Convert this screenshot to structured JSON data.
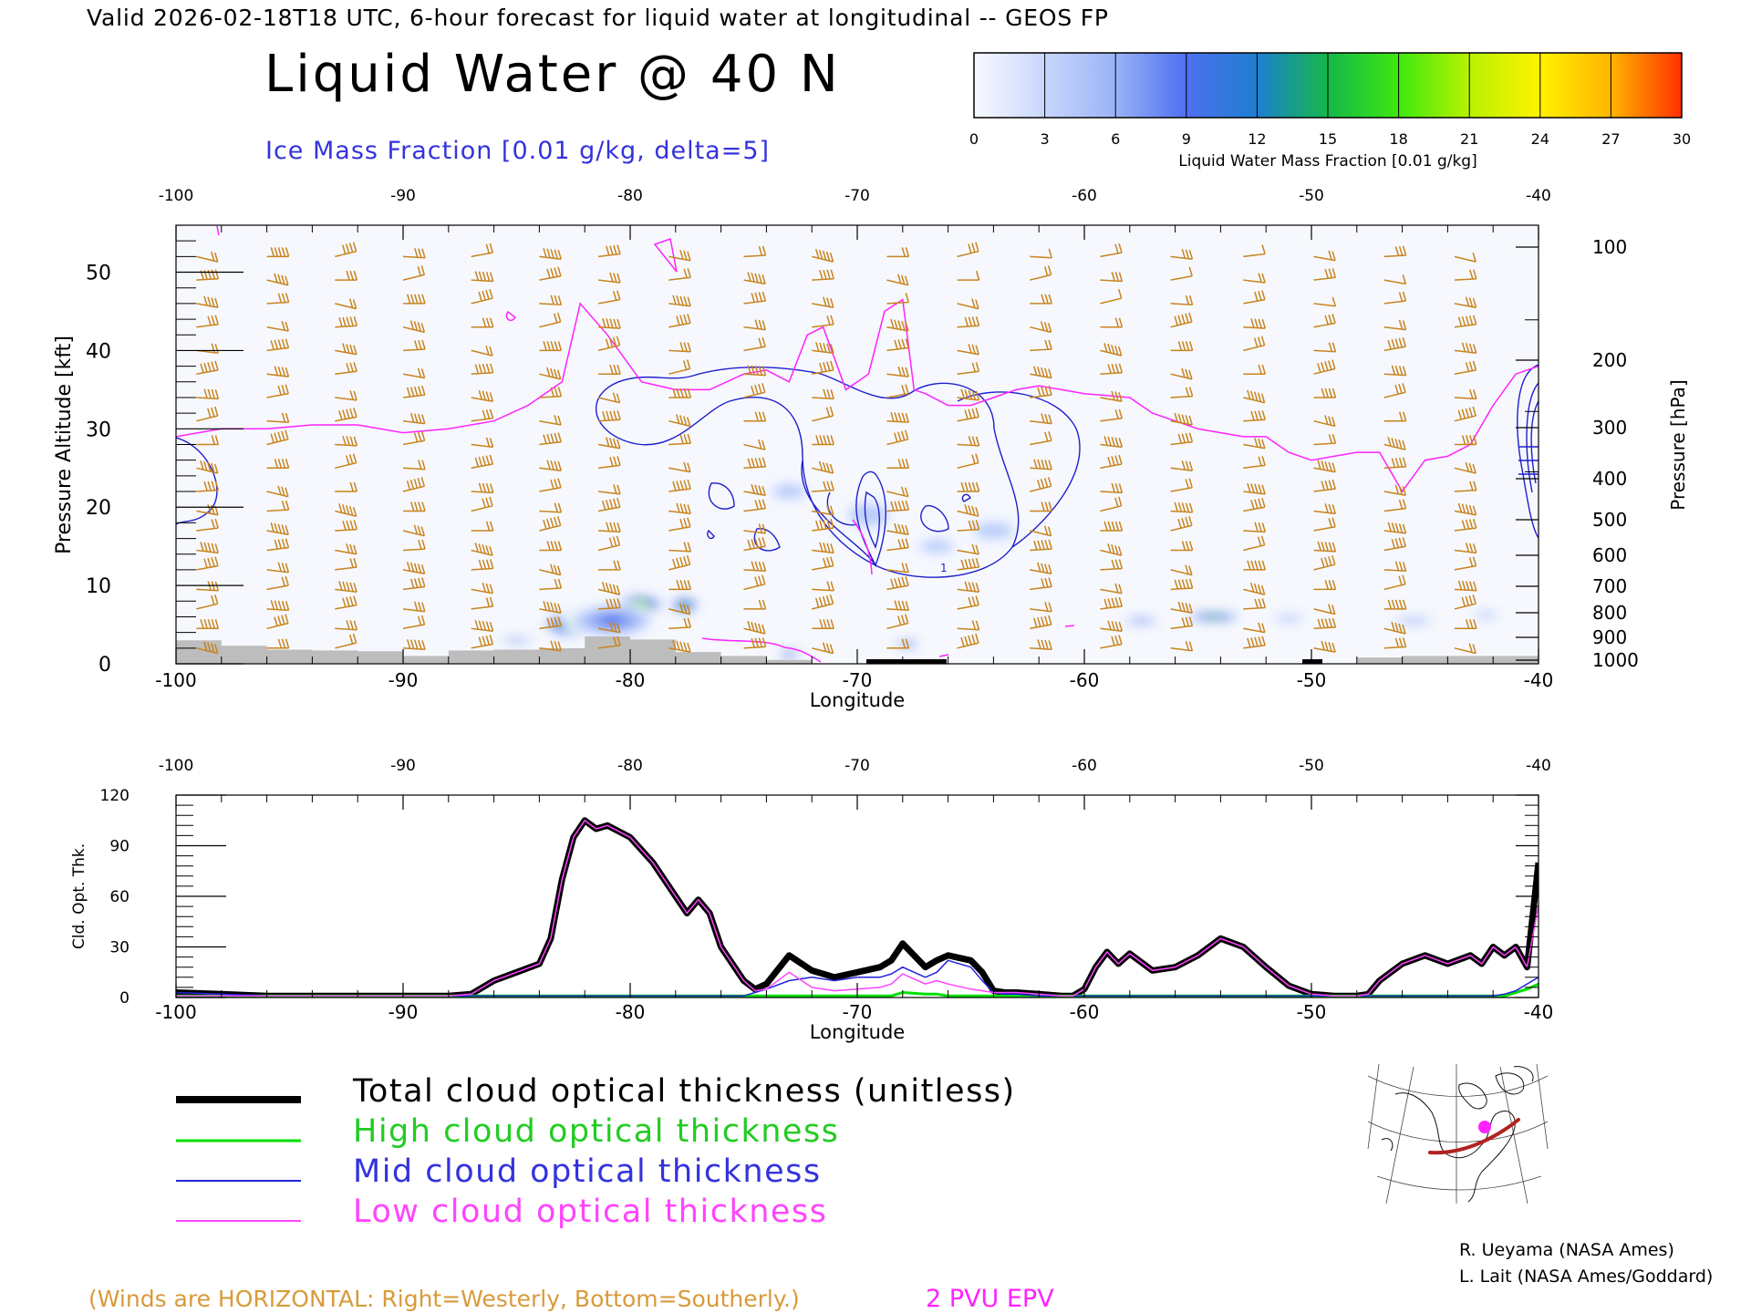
{
  "header": {
    "valid_line": "Valid 2026-02-18T18 UTC, 6-hour forecast for liquid water at longitudinal -- GEOS FP",
    "main_title": "Liquid Water @ 40 N",
    "ice_label": "Ice Mass Fraction [0.01 g/kg, delta=5]"
  },
  "colorbar": {
    "ticks": [
      "0",
      "3",
      "6",
      "9",
      "12",
      "15",
      "18",
      "21",
      "24",
      "27",
      "30"
    ],
    "label": "Liquid Water Mass Fraction [0.01 g/kg]",
    "colors": [
      "#f4f7ff",
      "#b9cdfb",
      "#8eaaf5",
      "#4f6ff0",
      "#1d7fd0",
      "#14b84a",
      "#3ee810",
      "#b8f200",
      "#fff200",
      "#ffb400",
      "#ff5000"
    ]
  },
  "colors": {
    "winds": "#c8841e",
    "epv": "#ff22ff",
    "ice_contour": "#1f1fcc",
    "terrain": "#bdbdbd",
    "total": "#000000",
    "high": "#00e000",
    "mid": "#2222dd",
    "low": "#ff44ff"
  },
  "top_chart": {
    "x_ticks": [
      "-100",
      "-90",
      "-80",
      "-70",
      "-60",
      "-50",
      "-40"
    ],
    "x_label": "Longitude",
    "y_ticks": [
      "0",
      "10",
      "20",
      "30",
      "40",
      "50"
    ],
    "y_label": "Pressure Altitude [kft]",
    "p_ticks": [
      "100",
      "200",
      "300",
      "400",
      "500",
      "600",
      "700",
      "800",
      "900",
      "1000"
    ],
    "p_label": "Pressure [hPa]",
    "contour_label": "1"
  },
  "bottom_chart": {
    "x_ticks": [
      "-100",
      "-90",
      "-80",
      "-70",
      "-60",
      "-50",
      "-40"
    ],
    "x_label": "Longitude",
    "y_ticks": [
      "0",
      "30",
      "60",
      "90",
      "120"
    ],
    "y_label": "Cld. Opt. Thk."
  },
  "legend": {
    "total": "Total cloud optical thickness (unitless)",
    "high": "High cloud optical thickness",
    "mid": "Mid cloud optical thickness",
    "low": "Low cloud optical thickness"
  },
  "credits": {
    "line1": "R. Ueyama (NASA Ames)",
    "line2": "L. Lait (NASA Ames/Goddard)"
  },
  "footer": {
    "winds_note": "(Winds are HORIZONTAL: Right=Westerly, Bottom=Southerly.)",
    "epv_label": "2 PVU EPV"
  },
  "chart_data": [
    {
      "type": "heatmap",
      "title": "Liquid Water @ 40 N",
      "xlabel": "Longitude",
      "ylabel": "Pressure Altitude [kft]",
      "xlim": [
        -100,
        -40
      ],
      "ylim": [
        0,
        56
      ],
      "colorbar_range": [
        0,
        30
      ],
      "liquid_blobs": [
        {
          "lon": -82.3,
          "alt": 5,
          "w": 3.2,
          "h": 3.5,
          "v": 26
        },
        {
          "lon": -79.6,
          "alt": 7.5,
          "w": 2.2,
          "h": 2.8,
          "v": 24
        },
        {
          "lon": -77.6,
          "alt": 7.5,
          "w": 1.4,
          "h": 2.2,
          "v": 20
        },
        {
          "lon": -80.8,
          "alt": 5.5,
          "w": 4.5,
          "h": 5,
          "v": 10
        },
        {
          "lon": -85,
          "alt": 3,
          "w": 2,
          "h": 1.2,
          "v": 8
        },
        {
          "lon": -73,
          "alt": 1.2,
          "w": 1.2,
          "h": 1.2,
          "v": 12
        },
        {
          "lon": -67.8,
          "alt": 2.5,
          "w": 1.2,
          "h": 1,
          "v": 16
        },
        {
          "lon": -69.5,
          "alt": 19,
          "w": 3.5,
          "h": 6,
          "v": 4
        },
        {
          "lon": -64,
          "alt": 17,
          "w": 3.5,
          "h": 4.5,
          "v": 4
        },
        {
          "lon": -66.5,
          "alt": 15,
          "w": 3,
          "h": 3.5,
          "v": 3
        },
        {
          "lon": -73,
          "alt": 22,
          "w": 3,
          "h": 4,
          "v": 3
        },
        {
          "lon": -57.5,
          "alt": 5.5,
          "w": 2,
          "h": 1.1,
          "v": 10
        },
        {
          "lon": -54.3,
          "alt": 6,
          "w": 2.6,
          "h": 1.3,
          "v": 19
        },
        {
          "lon": -51,
          "alt": 5.8,
          "w": 2,
          "h": 1.1,
          "v": 8
        },
        {
          "lon": -45.5,
          "alt": 5.5,
          "w": 2.5,
          "h": 1.2,
          "v": 8
        },
        {
          "lon": -42.3,
          "alt": 6.2,
          "w": 1.5,
          "h": 1.1,
          "v": 7
        }
      ],
      "tropopause_2pvu": {
        "lon": [
          -100,
          -98,
          -96,
          -94,
          -92,
          -90,
          -88,
          -86,
          -84.5,
          -83,
          -82.2,
          -81,
          -79.5,
          -78,
          -76.5,
          -75,
          -74,
          -73,
          -72.2,
          -71.5,
          -70.5,
          -69.5,
          -68.8,
          -68,
          -67.5,
          -67,
          -66,
          -65,
          -64,
          -63,
          -62,
          -61,
          -60,
          -58,
          -57,
          -55,
          -53,
          -52,
          -51,
          -50,
          -49,
          -48,
          -47,
          -46,
          -45.5,
          -45,
          -44,
          -43,
          -42,
          -41,
          -40
        ],
        "alt": [
          29,
          30,
          30,
          30.5,
          30.5,
          29.5,
          30,
          31,
          33,
          36,
          46,
          42,
          36,
          35,
          35,
          37,
          37.5,
          36,
          42,
          43,
          35,
          37,
          45,
          46.5,
          35,
          34.5,
          33,
          33,
          34,
          35,
          35.5,
          35,
          34.5,
          34,
          32,
          30,
          29,
          29,
          27,
          26,
          26.5,
          27,
          27,
          22,
          24,
          26,
          26.5,
          28,
          33,
          37,
          38
        ]
      },
      "ice_contour_level": 1,
      "terrain": {
        "lon": [
          -100,
          -98,
          -96,
          -94,
          -92,
          -90,
          -88,
          -86,
          -84,
          -82,
          -80,
          -78,
          -76,
          -74,
          -72,
          -70,
          -68,
          -66,
          -64,
          -62,
          -60,
          -58,
          -56,
          -54,
          -52,
          -50,
          -48,
          -46,
          -44,
          -42,
          -40
        ],
        "height": [
          3,
          2.3,
          1.8,
          1.7,
          1.6,
          1,
          1.7,
          1.8,
          2,
          3.5,
          3.1,
          1.5,
          1,
          0.5,
          0,
          0,
          0,
          0,
          0,
          0,
          0,
          0,
          0,
          0,
          0,
          0,
          0.8,
          1,
          1,
          1,
          1
        ]
      }
    },
    {
      "type": "line",
      "ylabel": "Cld. Opt. Thk.",
      "xlabel": "Longitude",
      "xlim": [
        -100,
        -40
      ],
      "ylim": [
        0,
        120
      ],
      "x": [
        -100,
        -98,
        -96,
        -94,
        -92,
        -90,
        -88,
        -87,
        -86,
        -85,
        -84,
        -83.5,
        -83,
        -82.5,
        -82,
        -81.5,
        -81,
        -80,
        -79,
        -78,
        -77.5,
        -77,
        -76.5,
        -76,
        -75,
        -74.5,
        -74,
        -73,
        -72,
        -71,
        -70,
        -69,
        -68.5,
        -68,
        -67,
        -66.5,
        -66,
        -65,
        -64.5,
        -64,
        -63.5,
        -63,
        -62,
        -61,
        -60.5,
        -60,
        -59.5,
        -59,
        -58.5,
        -58,
        -57,
        -56,
        -55,
        -54,
        -53,
        -52,
        -51,
        -50,
        -49,
        -48,
        -47.5,
        -47,
        -46,
        -45,
        -44,
        -43,
        -42.5,
        -42,
        -41.5,
        -41,
        -40.5,
        -40
      ],
      "series": [
        {
          "name": "Total cloud optical thickness (unitless)",
          "values": [
            3,
            2,
            1,
            1,
            1,
            1,
            1,
            2,
            10,
            15,
            20,
            35,
            70,
            95,
            105,
            100,
            102,
            95,
            80,
            60,
            50,
            58,
            50,
            30,
            10,
            5,
            8,
            25,
            16,
            12,
            15,
            18,
            22,
            32,
            18,
            22,
            25,
            22,
            15,
            4,
            3,
            3,
            2,
            1,
            1,
            5,
            18,
            27,
            20,
            26,
            16,
            18,
            25,
            35,
            30,
            18,
            7,
            2,
            1,
            1,
            2,
            10,
            20,
            25,
            20,
            25,
            20,
            30,
            25,
            30,
            18,
            80
          ]
        },
        {
          "name": "High cloud optical thickness",
          "values": [
            1,
            1,
            1,
            1,
            1,
            1,
            1,
            1,
            1,
            1,
            1,
            1,
            1,
            1,
            1,
            1,
            1,
            1,
            1,
            1,
            1,
            1,
            1,
            1,
            1,
            1,
            1,
            1,
            1,
            1,
            1,
            1,
            1,
            3,
            2,
            2,
            1,
            1,
            1,
            1,
            1,
            1,
            1,
            1,
            1,
            1,
            1,
            1,
            1,
            1,
            1,
            1,
            1,
            1,
            1,
            1,
            1,
            1,
            1,
            1,
            1,
            1,
            1,
            1,
            1,
            1,
            1,
            1,
            1,
            3,
            5,
            8
          ]
        },
        {
          "name": "Mid cloud optical thickness",
          "values": [
            3,
            2,
            1,
            1,
            1,
            1,
            1,
            1,
            1,
            1,
            1,
            1,
            1,
            1,
            1,
            1,
            1,
            1,
            1,
            1,
            1,
            1,
            1,
            1,
            1,
            3,
            5,
            10,
            12,
            10,
            12,
            12,
            14,
            18,
            12,
            15,
            22,
            18,
            10,
            3,
            2,
            2,
            1,
            1,
            1,
            1,
            1,
            1,
            1,
            1,
            1,
            1,
            1,
            1,
            1,
            1,
            1,
            1,
            1,
            1,
            1,
            1,
            1,
            1,
            1,
            1,
            1,
            1,
            2,
            4,
            8,
            12
          ]
        },
        {
          "name": "Low cloud optical thickness",
          "values": [
            1,
            1,
            1,
            1,
            1,
            1,
            1,
            2,
            10,
            15,
            20,
            35,
            70,
            95,
            105,
            100,
            102,
            95,
            80,
            60,
            50,
            58,
            50,
            30,
            10,
            4,
            5,
            15,
            6,
            4,
            5,
            6,
            8,
            14,
            8,
            10,
            8,
            5,
            4,
            3,
            3,
            3,
            2,
            1,
            1,
            5,
            18,
            27,
            20,
            26,
            16,
            18,
            25,
            35,
            30,
            18,
            7,
            2,
            1,
            1,
            2,
            10,
            20,
            25,
            20,
            25,
            20,
            30,
            25,
            30,
            18,
            55
          ]
        }
      ]
    }
  ]
}
